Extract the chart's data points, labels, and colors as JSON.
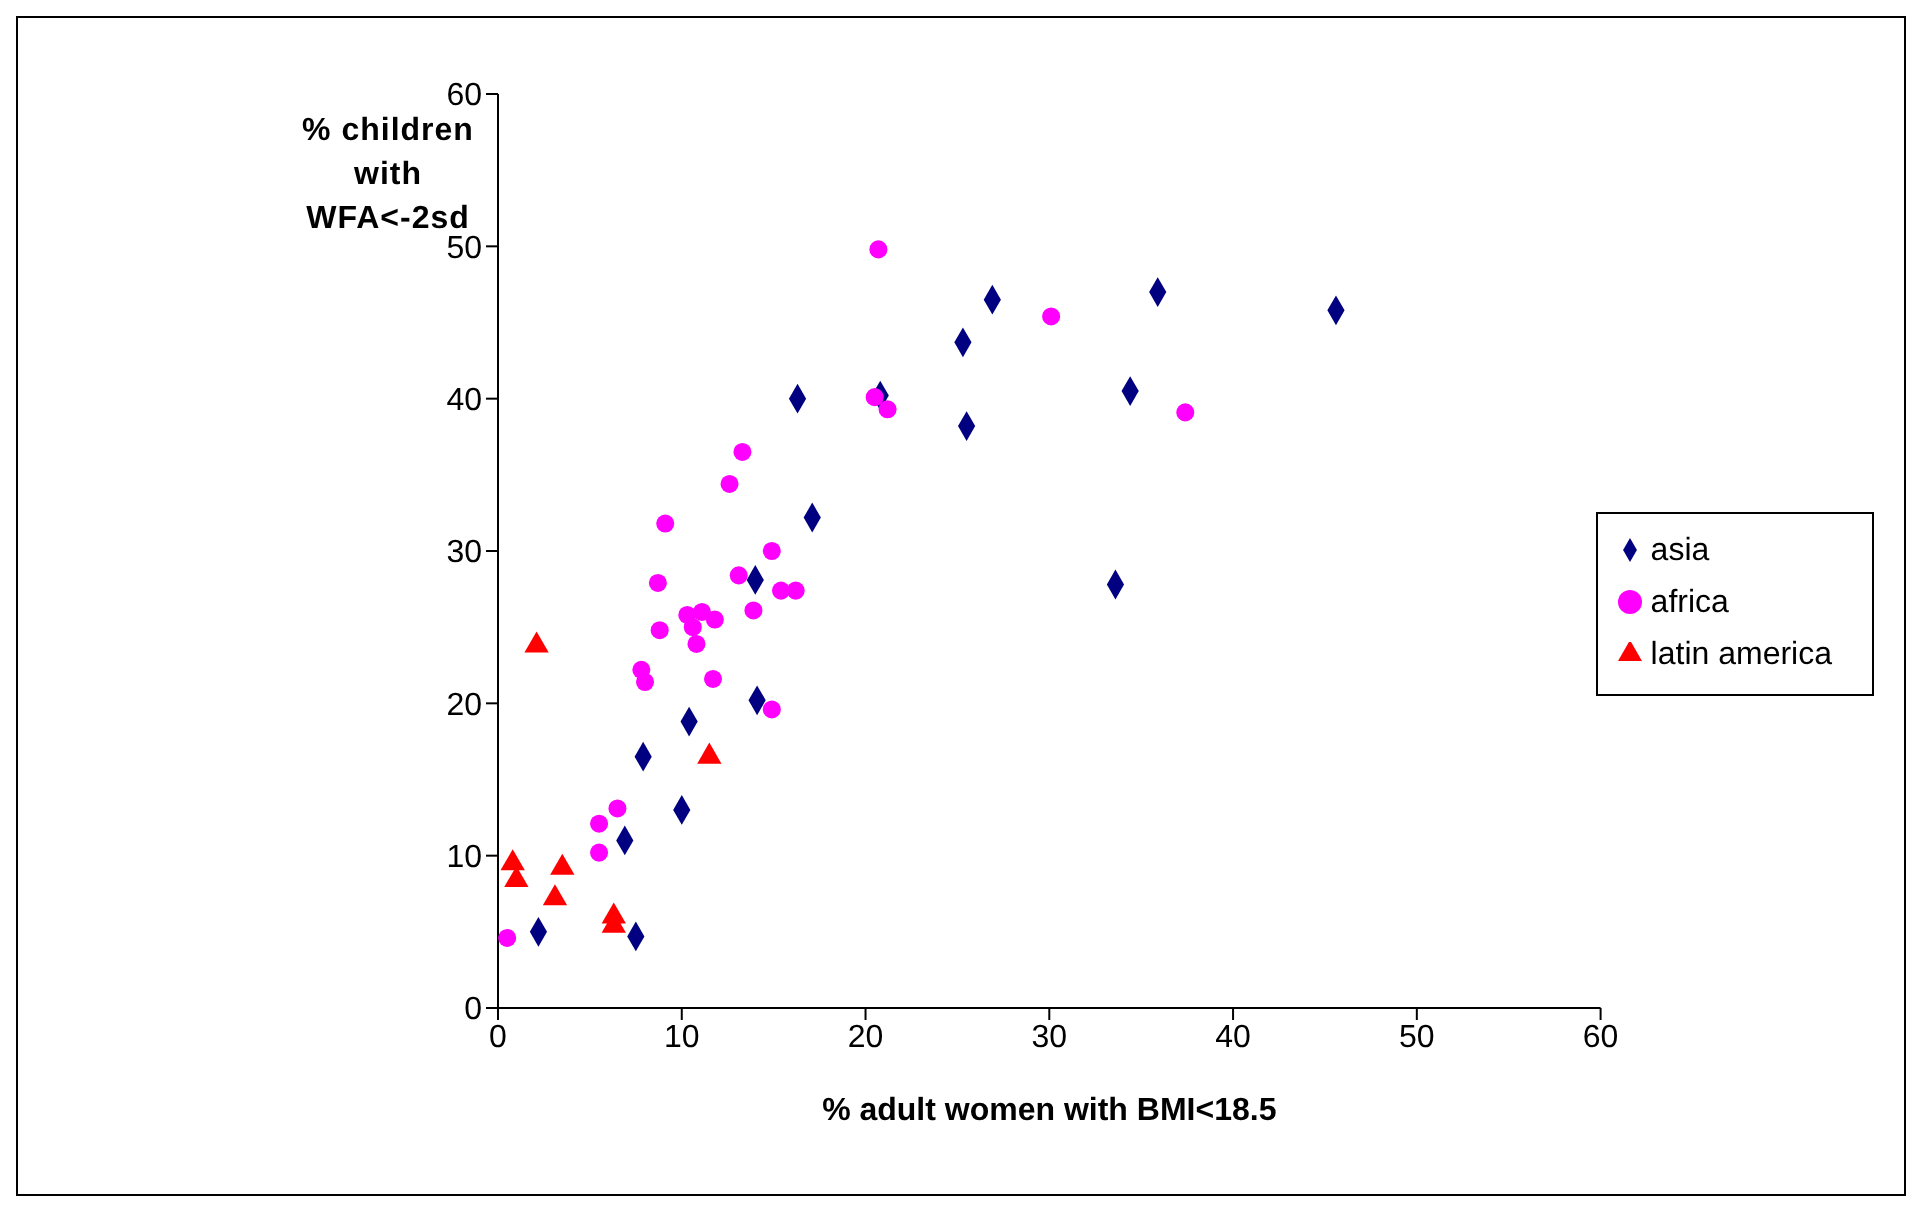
{
  "chart_data": {
    "type": "scatter",
    "xlabel": "% adult women with BMI<18.5",
    "ylabel": "% children with WFA<-2sd",
    "xlim": [
      0,
      60
    ],
    "xticks": [
      0,
      10,
      20,
      30,
      40,
      50,
      60
    ],
    "ylim": [
      0,
      60
    ],
    "yticks": [
      0,
      10,
      20,
      30,
      40,
      50,
      60
    ],
    "grid": false,
    "legend": "right",
    "series": [
      {
        "name": "asia",
        "color": "#000080",
        "marker": "diamond",
        "x": [
          2.2,
          7.5,
          6.9,
          10.0,
          7.9,
          10.4,
          14.1,
          14.0,
          17.1,
          16.3,
          20.8,
          25.3,
          26.9,
          25.5,
          35.9,
          34.4,
          45.6,
          33.6
        ],
        "values": [
          5.0,
          4.7,
          11.0,
          13.0,
          16.5,
          18.8,
          20.2,
          28.1,
          32.2,
          40.0,
          40.2,
          43.7,
          46.5,
          38.2,
          47.0,
          40.5,
          45.8,
          27.8
        ]
      },
      {
        "name": "africa",
        "color": "#ff00ff",
        "marker": "circle",
        "x": [
          0.5,
          5.5,
          5.5,
          6.5,
          14.9,
          11.7,
          7.8,
          8.0,
          8.8,
          10.8,
          10.3,
          11.1,
          11.8,
          10.6,
          13.9,
          15.4,
          16.2,
          14.9,
          13.1,
          8.7,
          9.1,
          12.6,
          13.3,
          20.7,
          20.5,
          21.2,
          30.1,
          37.4
        ],
        "values": [
          4.6,
          10.2,
          12.1,
          13.1,
          19.6,
          21.6,
          22.2,
          21.4,
          24.8,
          23.9,
          25.8,
          26.0,
          25.5,
          25.0,
          26.1,
          27.4,
          27.4,
          30.0,
          28.4,
          27.9,
          31.8,
          34.4,
          36.5,
          49.8,
          40.1,
          39.3,
          45.4,
          39.1
        ]
      },
      {
        "name": "latin america",
        "color": "#ff0000",
        "marker": "triangle",
        "x": [
          2.1,
          0.8,
          1.0,
          3.5,
          3.1,
          6.3,
          6.3,
          11.5
        ],
        "values": [
          23.8,
          9.5,
          8.4,
          9.2,
          7.2,
          6.0,
          5.4,
          16.5
        ]
      }
    ]
  }
}
